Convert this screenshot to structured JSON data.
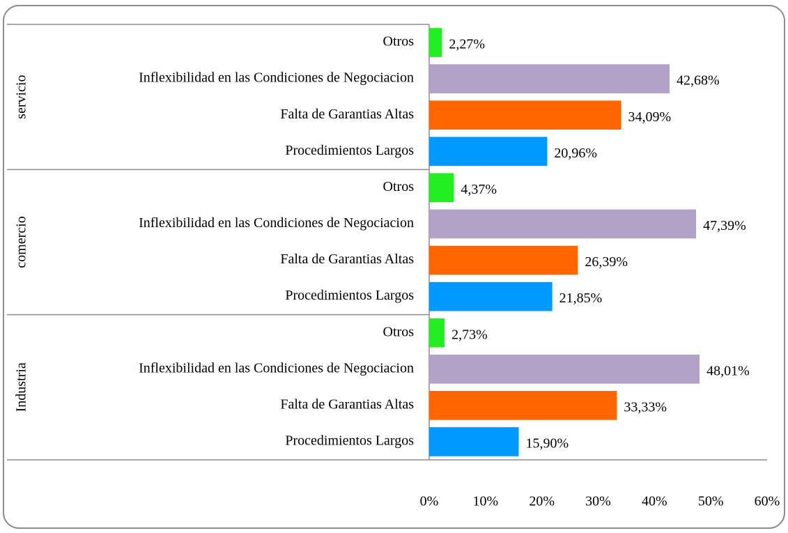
{
  "chart_data": {
    "type": "bar",
    "orientation": "horizontal",
    "categories": [
      "Otros",
      "Inflexibilidad en las Condiciones de Negociacion",
      "Falta de Garantias Altas",
      "Procedimientos Largos"
    ],
    "colors": [
      "#22ee22",
      "#b3a2c7",
      "#ff6600",
      "#0099ff"
    ],
    "groups": [
      {
        "name": "servicio",
        "values": [
          2.27,
          42.68,
          34.09,
          20.96
        ],
        "value_labels": [
          "2,27%",
          "42,68%",
          "34,09%",
          "20,96%"
        ]
      },
      {
        "name": "comercio",
        "values": [
          4.37,
          47.39,
          26.39,
          21.85
        ],
        "value_labels": [
          "4,37%",
          "47,39%",
          "26,39%",
          "21,85%"
        ]
      },
      {
        "name": "Industria",
        "values": [
          2.73,
          48.01,
          33.33,
          15.9
        ],
        "value_labels": [
          "2,73%",
          "48,01%",
          "33,33%",
          "15,90%"
        ]
      }
    ],
    "xlim": [
      0,
      60
    ],
    "xticks": [
      {
        "value": 0,
        "label": "0%"
      },
      {
        "value": 10,
        "label": "10%"
      },
      {
        "value": 20,
        "label": "20%"
      },
      {
        "value": 30,
        "label": "30%"
      },
      {
        "value": 40,
        "label": "40%"
      },
      {
        "value": 50,
        "label": "50%"
      },
      {
        "value": 60,
        "label": "60%"
      }
    ]
  }
}
